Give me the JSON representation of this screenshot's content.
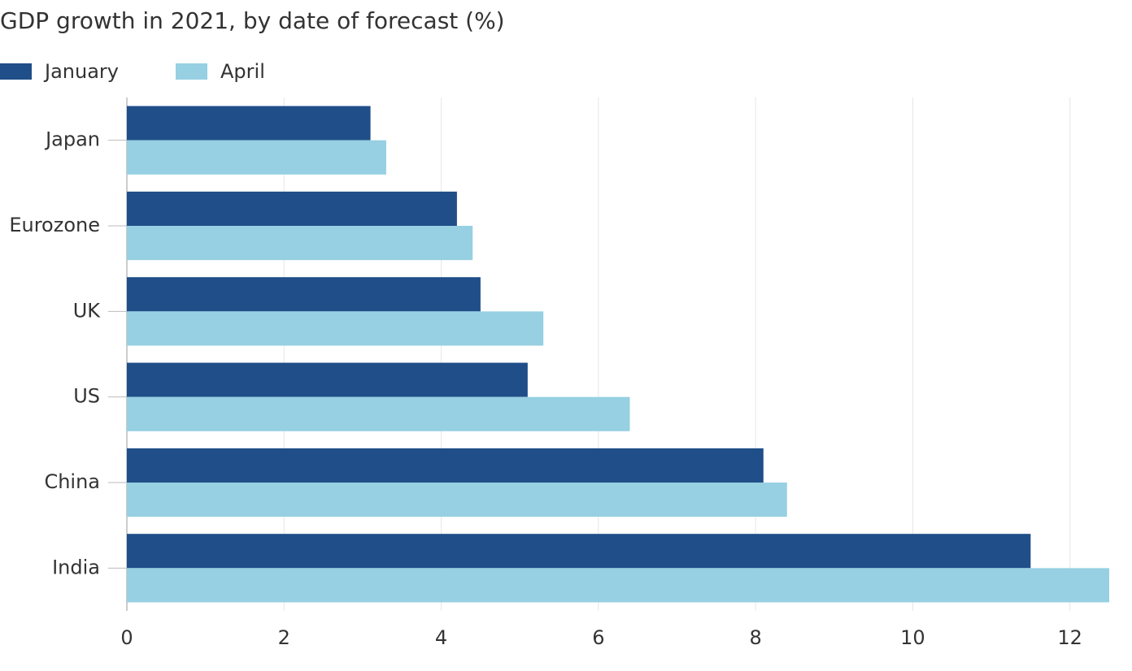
{
  "chart_data": {
    "type": "hbar",
    "title": "GDP growth in 2021, by date of forecast (%)",
    "categories": [
      "Japan",
      "Eurozone",
      "UK",
      "US",
      "China",
      "India"
    ],
    "series": [
      {
        "name": "January",
        "color": "#1f4e89",
        "values": [
          3.1,
          4.2,
          4.5,
          5.1,
          8.1,
          11.5
        ]
      },
      {
        "name": "April",
        "color": "#96d0e2",
        "values": [
          3.3,
          4.4,
          5.3,
          6.4,
          8.4,
          12.5
        ]
      }
    ],
    "xlim": [
      0,
      12.5
    ],
    "xticks": [
      0,
      2,
      4,
      6,
      8,
      10,
      12
    ],
    "grid": true
  }
}
